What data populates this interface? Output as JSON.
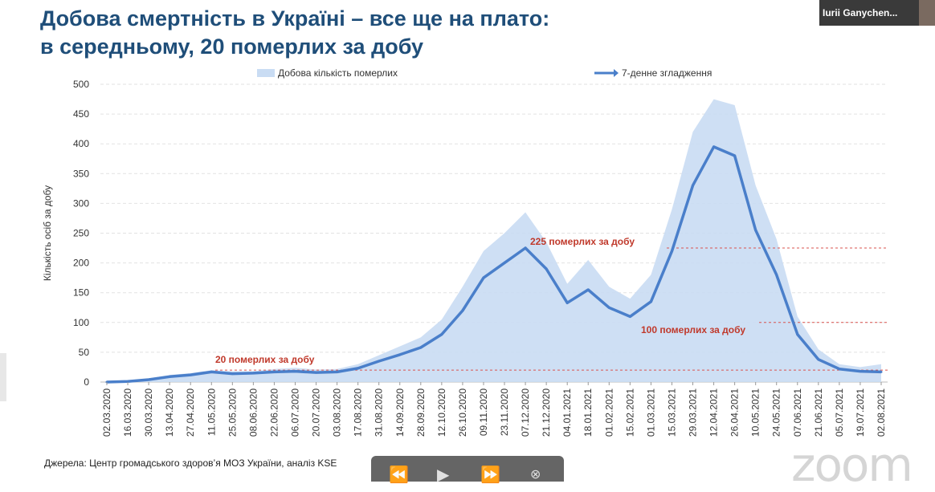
{
  "slide": {
    "title_line1": "Добова смертність в Україні – все ще на плато:",
    "title_line2": "в середньому, 20 померлих за добу",
    "source": "Джерела: Центр громадського здоров’я МОЗ України, аналіз KSE"
  },
  "zoom": {
    "participant_name": "Iurii Ganychen...",
    "watermark": "zoom"
  },
  "player": {
    "rewind_icon": "rewind-icon",
    "play_icon": "play-icon",
    "forward_icon": "fast-forward-icon",
    "close_icon": "close-icon"
  },
  "chart_data": {
    "type": "area",
    "ylabel": "Кількість осіб за добу",
    "ylim": [
      0,
      500
    ],
    "yticks": [
      0,
      50,
      100,
      150,
      200,
      250,
      300,
      350,
      400,
      450,
      500
    ],
    "legend": [
      "Добова кількість померлих",
      "7-денне згладження"
    ],
    "legend_position": "top",
    "grid": true,
    "x_tick_labels": [
      "02.03.2020",
      "16.03.2020",
      "30.03.2020",
      "13.04.2020",
      "27.04.2020",
      "11.05.2020",
      "25.05.2020",
      "08.06.2020",
      "22.06.2020",
      "06.07.2020",
      "20.07.2020",
      "03.08.2020",
      "17.08.2020",
      "31.08.2020",
      "14.09.2020",
      "28.09.2020",
      "12.10.2020",
      "26.10.2020",
      "09.11.2020",
      "23.11.2020",
      "07.12.2020",
      "21.12.2020",
      "04.01.2021",
      "18.01.2021",
      "01.02.2021",
      "15.02.2021",
      "01.03.2021",
      "15.03.2021",
      "29.03.2021",
      "12.04.2021",
      "26.04.2021",
      "10.05.2021",
      "24.05.2021",
      "07.06.2021",
      "21.06.2021",
      "05.07.2021",
      "19.07.2021",
      "02.08.2021"
    ],
    "series": [
      {
        "name": "7-денне згладження",
        "color": "#4a7fca",
        "x": [
          "02.03.2020",
          "16.03.2020",
          "30.03.2020",
          "13.04.2020",
          "27.04.2020",
          "11.05.2020",
          "25.05.2020",
          "08.06.2020",
          "22.06.2020",
          "06.07.2020",
          "20.07.2020",
          "03.08.2020",
          "17.08.2020",
          "31.08.2020",
          "14.09.2020",
          "28.09.2020",
          "12.10.2020",
          "26.10.2020",
          "09.11.2020",
          "23.11.2020",
          "07.12.2020",
          "21.12.2020",
          "04.01.2021",
          "18.01.2021",
          "01.02.2021",
          "15.02.2021",
          "01.03.2021",
          "15.03.2021",
          "29.03.2021",
          "12.04.2021",
          "26.04.2021",
          "10.05.2021",
          "24.05.2021",
          "07.06.2021",
          "21.06.2021",
          "05.07.2021",
          "19.07.2021",
          "02.08.2021"
        ],
        "values": [
          0,
          1,
          4,
          9,
          12,
          17,
          14,
          15,
          17,
          18,
          16,
          17,
          23,
          35,
          46,
          58,
          80,
          120,
          175,
          200,
          225,
          190,
          133,
          155,
          125,
          110,
          135,
          220,
          330,
          395,
          380,
          255,
          180,
          80,
          38,
          22,
          18,
          17
        ]
      },
      {
        "name": "Добова кількість померлих",
        "color": "#c9dcf3",
        "x": [
          "02.03.2020",
          "16.03.2020",
          "30.03.2020",
          "13.04.2020",
          "27.04.2020",
          "11.05.2020",
          "25.05.2020",
          "08.06.2020",
          "22.06.2020",
          "06.07.2020",
          "20.07.2020",
          "03.08.2020",
          "17.08.2020",
          "31.08.2020",
          "14.09.2020",
          "28.09.2020",
          "12.10.2020",
          "26.10.2020",
          "09.11.2020",
          "23.11.2020",
          "07.12.2020",
          "21.12.2020",
          "04.01.2021",
          "18.01.2021",
          "01.02.2021",
          "15.02.2021",
          "01.03.2021",
          "15.03.2021",
          "29.03.2021",
          "12.04.2021",
          "26.04.2021",
          "10.05.2021",
          "24.05.2021",
          "07.06.2021",
          "21.06.2021",
          "05.07.2021",
          "19.07.2021",
          "02.08.2021"
        ],
        "values": [
          0,
          2,
          6,
          12,
          15,
          20,
          18,
          18,
          22,
          24,
          21,
          22,
          30,
          45,
          60,
          75,
          105,
          160,
          220,
          250,
          285,
          235,
          165,
          205,
          160,
          140,
          180,
          290,
          420,
          475,
          465,
          330,
          240,
          110,
          55,
          30,
          25,
          30
        ]
      }
    ],
    "annotations": [
      {
        "text": "225 померлих за добу",
        "y": 225
      },
      {
        "text": "100 померлих за добу",
        "y": 100
      },
      {
        "text": "20 померлих за добу",
        "y": 20
      }
    ]
  }
}
